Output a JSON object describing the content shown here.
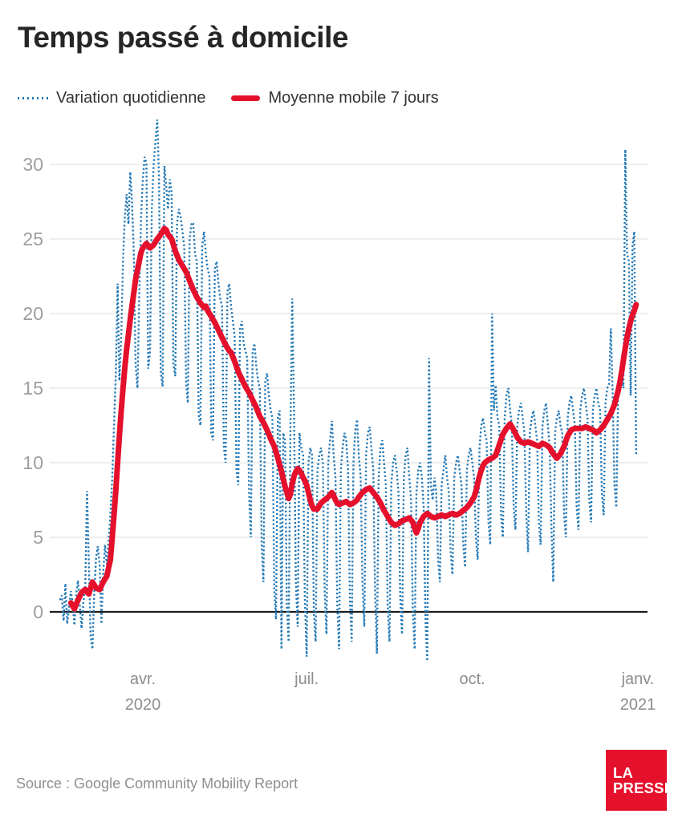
{
  "title": "Temps passé à domicile",
  "legend": [
    {
      "label": "Variation quotidienne",
      "color": "#2077b4",
      "style": "dotted"
    },
    {
      "label": "Moyenne mobile 7 jours",
      "color": "#e4102c",
      "style": "solid"
    }
  ],
  "source": "Source : Google Community Mobility Report",
  "logo": {
    "line1": "LA",
    "line2": "PRESSE",
    "bg": "#e4102c",
    "fg": "#ffffff"
  },
  "colors": {
    "daily": "#2077b4",
    "average": "#e4102c",
    "grid": "#e3e3e3",
    "zero_axis": "#1c1c1c",
    "tick_text": "#9e9e9e"
  },
  "chart_data": {
    "type": "line",
    "title": "Temps passé à domicile",
    "start_date": "2020-02-15",
    "x_unit": "day index from 2020-02-15",
    "x_axis": {
      "tick_labels": [
        {
          "label": "avr.",
          "sub": "2020",
          "day": 46
        },
        {
          "label": "juil.",
          "sub": "",
          "day": 137
        },
        {
          "label": "oct.",
          "sub": "",
          "day": 229
        },
        {
          "label": "janv.",
          "sub": "2021",
          "day": 321
        }
      ]
    },
    "y_axis": {
      "ticks": [
        0,
        5,
        10,
        15,
        20,
        25,
        30
      ],
      "ylim": [
        -4,
        33.5
      ],
      "grid": true
    },
    "series": [
      {
        "name": "Variation quotidienne",
        "style": "dotted",
        "color": "#2077b4",
        "values": [
          0.8,
          1.1,
          -0.6,
          1.9,
          -0.8,
          0.3,
          1.4,
          0.6,
          -0.9,
          1.2,
          2.1,
          0.4,
          -1.1,
          0.7,
          1.6,
          8.1,
          3.4,
          -1.6,
          -2.5,
          1.2,
          3.6,
          4.4,
          3.1,
          -0.8,
          2.6,
          4.5,
          3.2,
          4.8,
          6.5,
          9.0,
          12.5,
          16.0,
          22.0,
          15.5,
          18.5,
          23.5,
          26.5,
          28.0,
          26.0,
          29.5,
          27.5,
          24.0,
          16.5,
          15.0,
          21.0,
          26.5,
          29.0,
          30.5,
          30.1,
          16.3,
          17.5,
          27.0,
          30.0,
          31.5,
          33.0,
          29.0,
          16.0,
          15.1,
          29.9,
          28.5,
          27.0,
          29.0,
          28.1,
          16.6,
          15.8,
          26.0,
          27.0,
          26.5,
          25.5,
          24.5,
          15.4,
          14.0,
          25.0,
          26.0,
          26.1,
          24.0,
          23.5,
          13.2,
          12.5,
          24.5,
          25.5,
          24.0,
          23.0,
          22.5,
          12.0,
          11.5,
          23.0,
          23.5,
          22.0,
          21.0,
          20.5,
          11.0,
          10.0,
          21.5,
          22.0,
          20.5,
          19.5,
          18.5,
          9.5,
          8.5,
          19.0,
          19.5,
          18.0,
          17.5,
          17.0,
          8.0,
          5.0,
          17.5,
          18.0,
          16.5,
          15.5,
          15.0,
          4.5,
          2.0,
          15.5,
          16.0,
          14.5,
          13.5,
          13.0,
          1.5,
          -0.5,
          13.0,
          13.5,
          -2.5,
          12.0,
          11.5,
          0.5,
          -2.0,
          12.5,
          21.0,
          13.0,
          2.0,
          -1.0,
          12.0,
          11.0,
          10.5,
          1.0,
          -3.0,
          10.0,
          11.0,
          10.5,
          0.0,
          -2.0,
          9.5,
          10.5,
          11.0,
          10.0,
          1.5,
          -1.5,
          10.0,
          11.5,
          12.8,
          10.5,
          9.0,
          0.5,
          -2.5,
          9.5,
          11.0,
          12.0,
          11.5,
          9.5,
          1.0,
          -2.0,
          10.0,
          12.2,
          12.9,
          10.5,
          9.0,
          2.0,
          -1.0,
          10.5,
          12.0,
          12.4,
          11.0,
          9.5,
          1.5,
          -2.8,
          9.0,
          11.0,
          11.5,
          10.0,
          8.5,
          0.5,
          -2.0,
          8.5,
          10.0,
          10.5,
          9.5,
          8.0,
          1.0,
          -1.5,
          9.0,
          10.5,
          11.0,
          9.0,
          7.5,
          0.0,
          -2.5,
          8.0,
          9.5,
          10.0,
          9.0,
          7.0,
          -0.5,
          -3.3,
          17.0,
          8.5,
          7.5,
          9.0,
          8.0,
          3.5,
          2.0,
          8.5,
          9.5,
          10.5,
          9.0,
          8.0,
          4.0,
          2.5,
          9.0,
          10.0,
          10.5,
          9.5,
          8.5,
          4.5,
          3.0,
          9.5,
          10.5,
          11.0,
          10.0,
          9.0,
          5.0,
          3.5,
          11.0,
          12.5,
          13.0,
          12.0,
          11.5,
          6.0,
          4.5,
          20.0,
          13.5,
          15.2,
          13.0,
          12.5,
          6.5,
          5.0,
          13.0,
          14.5,
          15.0,
          13.5,
          12.5,
          7.0,
          5.5,
          12.5,
          13.5,
          14.0,
          13.0,
          12.0,
          6.5,
          4.0,
          12.0,
          13.0,
          13.5,
          12.5,
          11.5,
          6.0,
          4.5,
          12.5,
          13.5,
          14.0,
          12.5,
          11.0,
          5.5,
          2.0,
          12.0,
          13.0,
          13.5,
          12.5,
          12.0,
          6.5,
          5.0,
          13.0,
          14.0,
          14.5,
          13.5,
          12.5,
          7.0,
          5.5,
          13.5,
          14.5,
          15.0,
          14.0,
          13.0,
          7.5,
          6.0,
          13.5,
          14.5,
          15.0,
          14.0,
          13.5,
          8.0,
          6.5,
          14.0,
          15.0,
          15.3,
          19.0,
          14.5,
          8.5,
          7.0,
          14.5,
          15.5,
          16.0,
          15.0,
          31.0,
          24.0,
          23.5,
          14.5,
          24.5,
          25.5,
          10.5
        ]
      },
      {
        "name": "Moyenne mobile 7 jours",
        "style": "solid",
        "color": "#e4102c",
        "points": [
          [
            6,
            0.6
          ],
          [
            8,
            0.2
          ],
          [
            10,
            0.8
          ],
          [
            12,
            1.3
          ],
          [
            14,
            1.5
          ],
          [
            16,
            1.2
          ],
          [
            18,
            2.0
          ],
          [
            20,
            1.6
          ],
          [
            22,
            1.5
          ],
          [
            24,
            2.0
          ],
          [
            26,
            2.4
          ],
          [
            28,
            3.5
          ],
          [
            29,
            5.0
          ],
          [
            30,
            6.5
          ],
          [
            31,
            8.2
          ],
          [
            32,
            10.0
          ],
          [
            33,
            11.8
          ],
          [
            34,
            13.5
          ],
          [
            35,
            15.0
          ],
          [
            36,
            16.4
          ],
          [
            37,
            17.6
          ],
          [
            38,
            18.6
          ],
          [
            39,
            19.6
          ],
          [
            40,
            20.5
          ],
          [
            41,
            21.4
          ],
          [
            42,
            22.3
          ],
          [
            43,
            22.9
          ],
          [
            44,
            23.5
          ],
          [
            45,
            24.1
          ],
          [
            46,
            24.4
          ],
          [
            48,
            24.7
          ],
          [
            50,
            24.4
          ],
          [
            52,
            24.6
          ],
          [
            54,
            25.0
          ],
          [
            56,
            25.3
          ],
          [
            58,
            25.7
          ],
          [
            59,
            25.6
          ],
          [
            60,
            25.3
          ],
          [
            62,
            25.0
          ],
          [
            64,
            24.2
          ],
          [
            66,
            23.6
          ],
          [
            68,
            23.2
          ],
          [
            70,
            22.8
          ],
          [
            72,
            22.2
          ],
          [
            74,
            21.6
          ],
          [
            76,
            21.1
          ],
          [
            78,
            20.7
          ],
          [
            80,
            20.4
          ],
          [
            81,
            20.5
          ],
          [
            82,
            20.2
          ],
          [
            84,
            19.8
          ],
          [
            86,
            19.4
          ],
          [
            88,
            18.9
          ],
          [
            90,
            18.4
          ],
          [
            92,
            17.9
          ],
          [
            94,
            17.5
          ],
          [
            95,
            17.4
          ],
          [
            97,
            16.8
          ],
          [
            99,
            16.1
          ],
          [
            101,
            15.6
          ],
          [
            103,
            15.1
          ],
          [
            105,
            14.7
          ],
          [
            107,
            14.2
          ],
          [
            109,
            13.7
          ],
          [
            111,
            13.1
          ],
          [
            113,
            12.7
          ],
          [
            115,
            12.2
          ],
          [
            117,
            11.6
          ],
          [
            119,
            11.1
          ],
          [
            121,
            10.3
          ],
          [
            123,
            9.4
          ],
          [
            125,
            8.4
          ],
          [
            127,
            7.6
          ],
          [
            128,
            7.9
          ],
          [
            129,
            8.6
          ],
          [
            130,
            9.1
          ],
          [
            131,
            9.4
          ],
          [
            132,
            9.6
          ],
          [
            133,
            9.5
          ],
          [
            134,
            9.3
          ],
          [
            135,
            9.0
          ],
          [
            136,
            8.8
          ],
          [
            137,
            8.5
          ],
          [
            138,
            8.0
          ],
          [
            139,
            7.5
          ],
          [
            140,
            7.1
          ],
          [
            141,
            6.9
          ],
          [
            143,
            6.9
          ],
          [
            145,
            7.3
          ],
          [
            147,
            7.5
          ],
          [
            149,
            7.7
          ],
          [
            151,
            8.0
          ],
          [
            152,
            7.8
          ],
          [
            153,
            7.5
          ],
          [
            154,
            7.3
          ],
          [
            155,
            7.2
          ],
          [
            157,
            7.3
          ],
          [
            159,
            7.4
          ],
          [
            161,
            7.2
          ],
          [
            163,
            7.3
          ],
          [
            165,
            7.5
          ],
          [
            166,
            7.7
          ],
          [
            168,
            8.0
          ],
          [
            170,
            8.2
          ],
          [
            172,
            8.3
          ],
          [
            174,
            8.0
          ],
          [
            176,
            7.7
          ],
          [
            178,
            7.3
          ],
          [
            180,
            6.8
          ],
          [
            182,
            6.4
          ],
          [
            184,
            6.0
          ],
          [
            186,
            5.8
          ],
          [
            188,
            5.9
          ],
          [
            190,
            6.1
          ],
          [
            192,
            6.2
          ],
          [
            194,
            6.3
          ],
          [
            196,
            6.0
          ],
          [
            197,
            5.6
          ],
          [
            198,
            5.3
          ],
          [
            199,
            5.6
          ],
          [
            200,
            6.0
          ],
          [
            202,
            6.4
          ],
          [
            204,
            6.6
          ],
          [
            206,
            6.4
          ],
          [
            208,
            6.3
          ],
          [
            210,
            6.4
          ],
          [
            212,
            6.5
          ],
          [
            214,
            6.4
          ],
          [
            216,
            6.5
          ],
          [
            218,
            6.6
          ],
          [
            220,
            6.5
          ],
          [
            222,
            6.6
          ],
          [
            224,
            6.8
          ],
          [
            226,
            7.0
          ],
          [
            228,
            7.3
          ],
          [
            230,
            7.7
          ],
          [
            231,
            8.1
          ],
          [
            232,
            8.6
          ],
          [
            233,
            9.1
          ],
          [
            234,
            9.5
          ],
          [
            235,
            9.8
          ],
          [
            236,
            10.0
          ],
          [
            238,
            10.2
          ],
          [
            240,
            10.3
          ],
          [
            242,
            10.5
          ],
          [
            244,
            11.2
          ],
          [
            246,
            11.9
          ],
          [
            248,
            12.3
          ],
          [
            250,
            12.6
          ],
          [
            252,
            12.2
          ],
          [
            254,
            11.7
          ],
          [
            256,
            11.4
          ],
          [
            258,
            11.3
          ],
          [
            260,
            11.4
          ],
          [
            262,
            11.3
          ],
          [
            264,
            11.2
          ],
          [
            266,
            11.1
          ],
          [
            268,
            11.3
          ],
          [
            270,
            11.2
          ],
          [
            272,
            11.0
          ],
          [
            274,
            10.6
          ],
          [
            276,
            10.3
          ],
          [
            278,
            10.6
          ],
          [
            280,
            11.1
          ],
          [
            282,
            11.8
          ],
          [
            284,
            12.2
          ],
          [
            286,
            12.3
          ],
          [
            288,
            12.3
          ],
          [
            290,
            12.3
          ],
          [
            292,
            12.4
          ],
          [
            294,
            12.3
          ],
          [
            296,
            12.2
          ],
          [
            298,
            12.0
          ],
          [
            300,
            12.2
          ],
          [
            302,
            12.5
          ],
          [
            304,
            12.9
          ],
          [
            306,
            13.3
          ],
          [
            308,
            13.9
          ],
          [
            310,
            14.8
          ],
          [
            311,
            15.4
          ],
          [
            312,
            16.1
          ],
          [
            313,
            16.9
          ],
          [
            314,
            17.7
          ],
          [
            315,
            18.4
          ],
          [
            316,
            19.0
          ],
          [
            317,
            19.5
          ],
          [
            318,
            19.9
          ],
          [
            319,
            20.2
          ],
          [
            320,
            20.6
          ]
        ]
      }
    ]
  }
}
